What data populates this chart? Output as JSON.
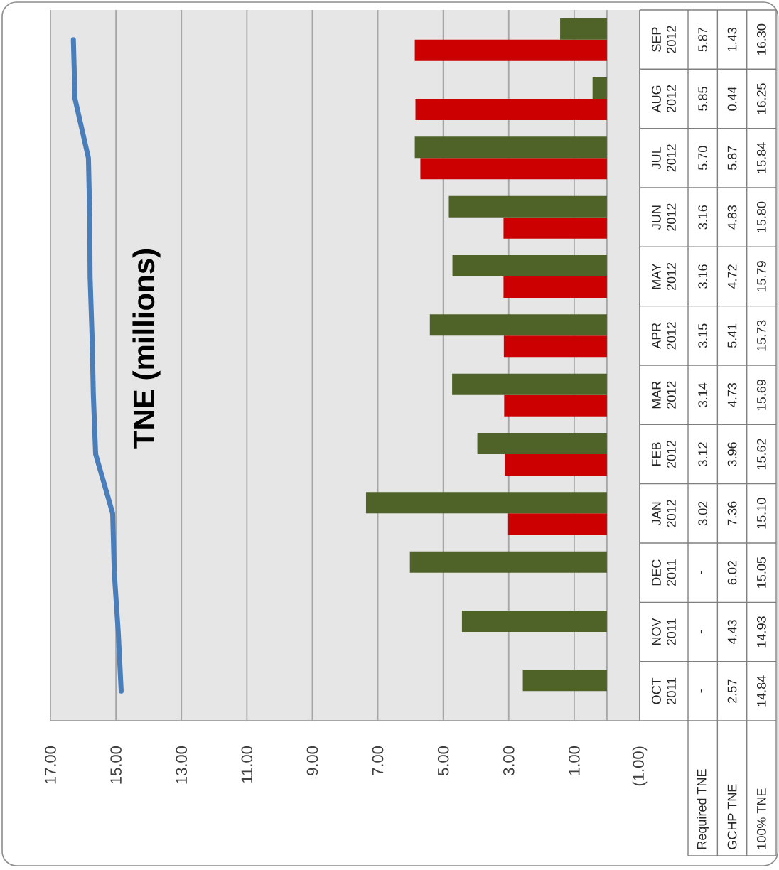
{
  "chart_data": {
    "type": "bar",
    "orientation": "horizontal",
    "title": "TNE (millions)",
    "categories": [
      "SEP 2012",
      "AUG 2012",
      "JUL 2012",
      "JUN 2012",
      "MAY 2012",
      "APR 2012",
      "MAR 2012",
      "FEB 2012",
      "JAN 2012",
      "DEC 2011",
      "NOV 2011",
      "OCT 2011"
    ],
    "series": [
      {
        "name": "Required TNE",
        "color": "#cc0000",
        "values": [
          5.87,
          5.85,
          5.7,
          3.16,
          3.16,
          3.15,
          3.14,
          3.12,
          3.02,
          null,
          null,
          null
        ],
        "value_labels": [
          "5.87",
          "5.85",
          "5.70",
          "3.16",
          "3.16",
          "3.15",
          "3.14",
          "3.12",
          "3.02",
          "-",
          "-",
          "-"
        ]
      },
      {
        "name": "GCHP TNE",
        "color": "#4f6228",
        "values": [
          1.43,
          0.44,
          5.87,
          4.83,
          4.72,
          5.41,
          4.73,
          3.96,
          7.36,
          6.02,
          4.43,
          2.57
        ],
        "value_labels": [
          "1.43",
          "0.44",
          "5.87",
          "4.83",
          "4.72",
          "5.41",
          "4.73",
          "3.96",
          "7.36",
          "6.02",
          "4.43",
          "2.57"
        ]
      },
      {
        "name": "100% TNE",
        "type": "line",
        "color": "#4a7ebb",
        "values": [
          16.3,
          16.25,
          15.84,
          15.8,
          15.79,
          15.73,
          15.69,
          15.62,
          15.1,
          15.05,
          14.93,
          14.84
        ],
        "value_labels": [
          "16.30",
          "16.25",
          "15.84",
          "15.80",
          "15.79",
          "15.73",
          "15.69",
          "15.62",
          "15.10",
          "15.05",
          "14.93",
          "14.84"
        ]
      }
    ],
    "xlim": [
      17,
      -1
    ],
    "xticks": [
      {
        "value": 17,
        "label": "17.00"
      },
      {
        "value": 15,
        "label": "15.00"
      },
      {
        "value": 13,
        "label": "13.00"
      },
      {
        "value": 11,
        "label": "11.00"
      },
      {
        "value": 9,
        "label": "9.00"
      },
      {
        "value": 7,
        "label": "7.00"
      },
      {
        "value": 5,
        "label": "5.00"
      },
      {
        "value": 3,
        "label": "3.00"
      },
      {
        "value": 1,
        "label": "1.00"
      },
      {
        "value": -1,
        "label": "(1.00)"
      }
    ],
    "grid": "x"
  }
}
